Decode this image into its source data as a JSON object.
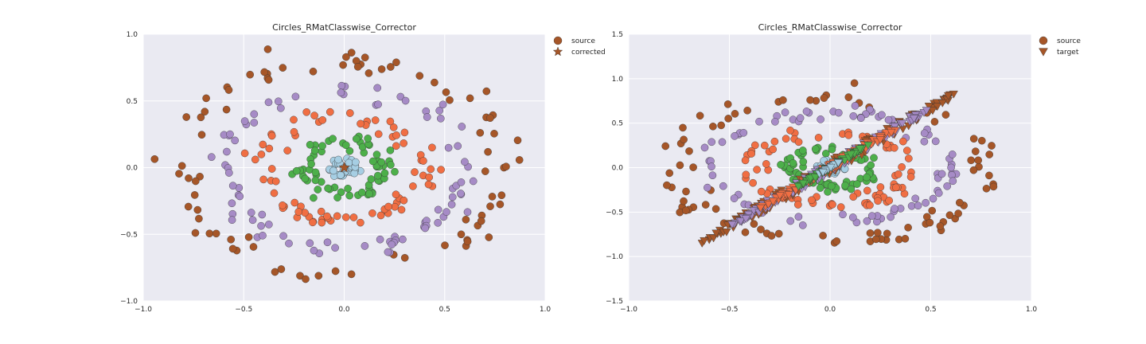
{
  "colors": {
    "background": "#eaeaf2",
    "grid": "#ffffff",
    "outer_ring": "#a65628",
    "ring_4": "#a68bc6",
    "ring_3": "#f06e43",
    "ring_2": "#4daf4a",
    "center": "#a6cee3"
  },
  "chart_data": [
    {
      "type": "scatter",
      "title": "Circles_RMatClasswise_Corrector",
      "xlim": [
        -1.0,
        1.0
      ],
      "ylim": [
        -1.0,
        1.0
      ],
      "xticks": [
        "−1.0",
        "−0.5",
        "0.0",
        "0.5",
        "1.0"
      ],
      "yticks": [
        "1.0",
        "0.5",
        "0.0",
        "−0.5",
        "−1.0"
      ],
      "xtick_values": [
        -1.0,
        -0.5,
        0.0,
        0.5,
        1.0
      ],
      "ytick_values": [
        1.0,
        0.5,
        0.0,
        -0.5,
        -1.0
      ],
      "grid": true,
      "legend": {
        "placement": "outside-top-right",
        "entries": [
          {
            "label": "source",
            "marker": "circle"
          },
          {
            "label": "corrected",
            "marker": "star"
          }
        ]
      },
      "classes": [
        {
          "color_key": "outer_ring",
          "approx_radius": 0.8,
          "spread": 0.05,
          "count": 85
        },
        {
          "color_key": "ring_4",
          "approx_radius": 0.6,
          "spread": 0.04,
          "count": 85
        },
        {
          "color_key": "ring_3",
          "approx_radius": 0.4,
          "spread": 0.04,
          "count": 80
        },
        {
          "color_key": "ring_2",
          "approx_radius": 0.2,
          "spread": 0.03,
          "count": 70
        },
        {
          "color_key": "center",
          "approx_radius": 0.05,
          "spread": 0.02,
          "count": 45
        }
      ],
      "corrected_marker": {
        "x": 0.0,
        "y": 0.0
      }
    },
    {
      "type": "scatter",
      "title": "Circles_RMatClasswise_Corrector",
      "xlim": [
        -1.0,
        1.0
      ],
      "ylim": [
        -1.5,
        1.5
      ],
      "xticks": [
        "−1.0",
        "−0.5",
        "0.0",
        "0.5",
        "1.0"
      ],
      "yticks": [
        "1.5",
        "1.0",
        "0.5",
        "0.0",
        "−0.5",
        "−1.0",
        "−1.5"
      ],
      "xtick_values": [
        -1.0,
        -0.5,
        0.0,
        0.5,
        1.0
      ],
      "ytick_values": [
        1.5,
        1.0,
        0.5,
        0.0,
        -0.5,
        -1.0,
        -1.5
      ],
      "grid": true,
      "legend": {
        "placement": "outside-top-right",
        "entries": [
          {
            "label": "source",
            "marker": "circle"
          },
          {
            "label": "target",
            "marker": "triangle-down"
          }
        ]
      },
      "source_classes": [
        {
          "color_key": "outer_ring",
          "approx_radius": 0.8,
          "spread": 0.05,
          "count": 85
        },
        {
          "color_key": "ring_4",
          "approx_radius": 0.6,
          "spread": 0.04,
          "count": 85
        },
        {
          "color_key": "ring_3",
          "approx_radius": 0.4,
          "spread": 0.04,
          "count": 80
        },
        {
          "color_key": "ring_2",
          "approx_radius": 0.2,
          "spread": 0.03,
          "count": 70
        },
        {
          "color_key": "center",
          "approx_radius": 0.05,
          "spread": 0.02,
          "count": 45
        }
      ],
      "target_transform": {
        "matrix": [
          [
            0.5,
            0.35
          ],
          [
            0.6,
            0.25
          ]
        ],
        "note": "target points lie on a tilted, compressed ellipse band"
      },
      "target_classes": [
        {
          "color_key": "outer_ring",
          "approx_radius": 0.8,
          "spread": 0.04,
          "count": 80
        },
        {
          "color_key": "ring_4",
          "approx_radius": 0.6,
          "spread": 0.04,
          "count": 80
        },
        {
          "color_key": "ring_3",
          "approx_radius": 0.4,
          "spread": 0.04,
          "count": 80
        },
        {
          "color_key": "ring_2",
          "approx_radius": 0.2,
          "spread": 0.03,
          "count": 70
        },
        {
          "color_key": "center",
          "approx_radius": 0.05,
          "spread": 0.02,
          "count": 40
        }
      ]
    }
  ]
}
